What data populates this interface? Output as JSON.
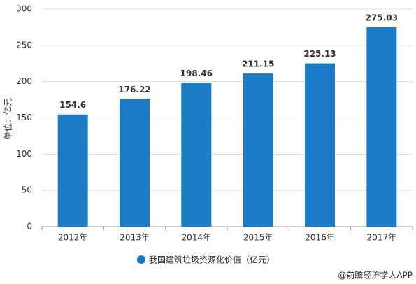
{
  "chart_data": {
    "type": "bar",
    "y_axis_label": "单位：亿元",
    "categories": [
      "2012年",
      "2013年",
      "2014年",
      "2015年",
      "2016年",
      "2017年"
    ],
    "series": [
      {
        "name": "我国建筑垃圾资源化价值（亿元）",
        "color": "#1b7cc5",
        "values": [
          154.6,
          176.22,
          198.46,
          211.15,
          225.13,
          275.03
        ]
      }
    ],
    "ylim": [
      0,
      300
    ],
    "yticks": [
      0,
      50,
      100,
      150,
      200,
      250,
      300
    ],
    "grid": true,
    "source": "@前瞻经济学人APP"
  }
}
